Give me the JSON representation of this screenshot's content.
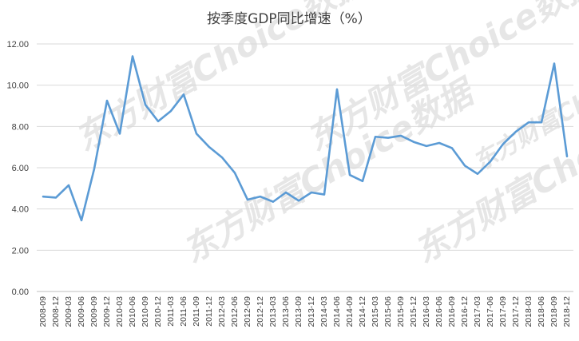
{
  "chart_data": {
    "type": "line",
    "title": "按季度GDP同比增速（%）",
    "xlabel": "",
    "ylabel": "",
    "ylim": [
      0,
      12
    ],
    "yticks": [
      "0.00",
      "2.00",
      "4.00",
      "6.00",
      "8.00",
      "10.00",
      "12.00"
    ],
    "grid": true,
    "legend": "none",
    "line_color": "#5b9bd5",
    "watermark": "东方财富Choice数据",
    "categories": [
      "2008-09",
      "2008-12",
      "2009-03",
      "2009-06",
      "2009-09",
      "2009-12",
      "2010-03",
      "2010-06",
      "2010-09",
      "2010-12",
      "2011-03",
      "2011-06",
      "2011-09",
      "2011-12",
      "2012-03",
      "2012-06",
      "2012-09",
      "2012-12",
      "2013-03",
      "2013-06",
      "2013-09",
      "2013-12",
      "2014-03",
      "2014-06",
      "2014-09",
      "2014-12",
      "2015-03",
      "2015-06",
      "2015-09",
      "2015-12",
      "2016-03",
      "2016-06",
      "2016-09",
      "2016-12",
      "2017-03",
      "2017-06",
      "2017-09",
      "2017-12",
      "2018-03",
      "2018-06",
      "2018-09",
      "2018-12"
    ],
    "values": [
      4.6,
      4.55,
      5.15,
      3.45,
      5.95,
      9.25,
      7.65,
      11.4,
      9.05,
      8.25,
      8.75,
      9.55,
      7.65,
      7.0,
      6.5,
      5.75,
      4.45,
      4.6,
      4.35,
      4.8,
      4.4,
      4.8,
      4.7,
      9.8,
      5.65,
      5.35,
      7.5,
      7.45,
      7.55,
      7.25,
      7.05,
      7.2,
      6.95,
      6.1,
      5.7,
      6.3,
      7.15,
      7.75,
      8.2,
      8.2,
      11.05,
      6.55
    ]
  }
}
